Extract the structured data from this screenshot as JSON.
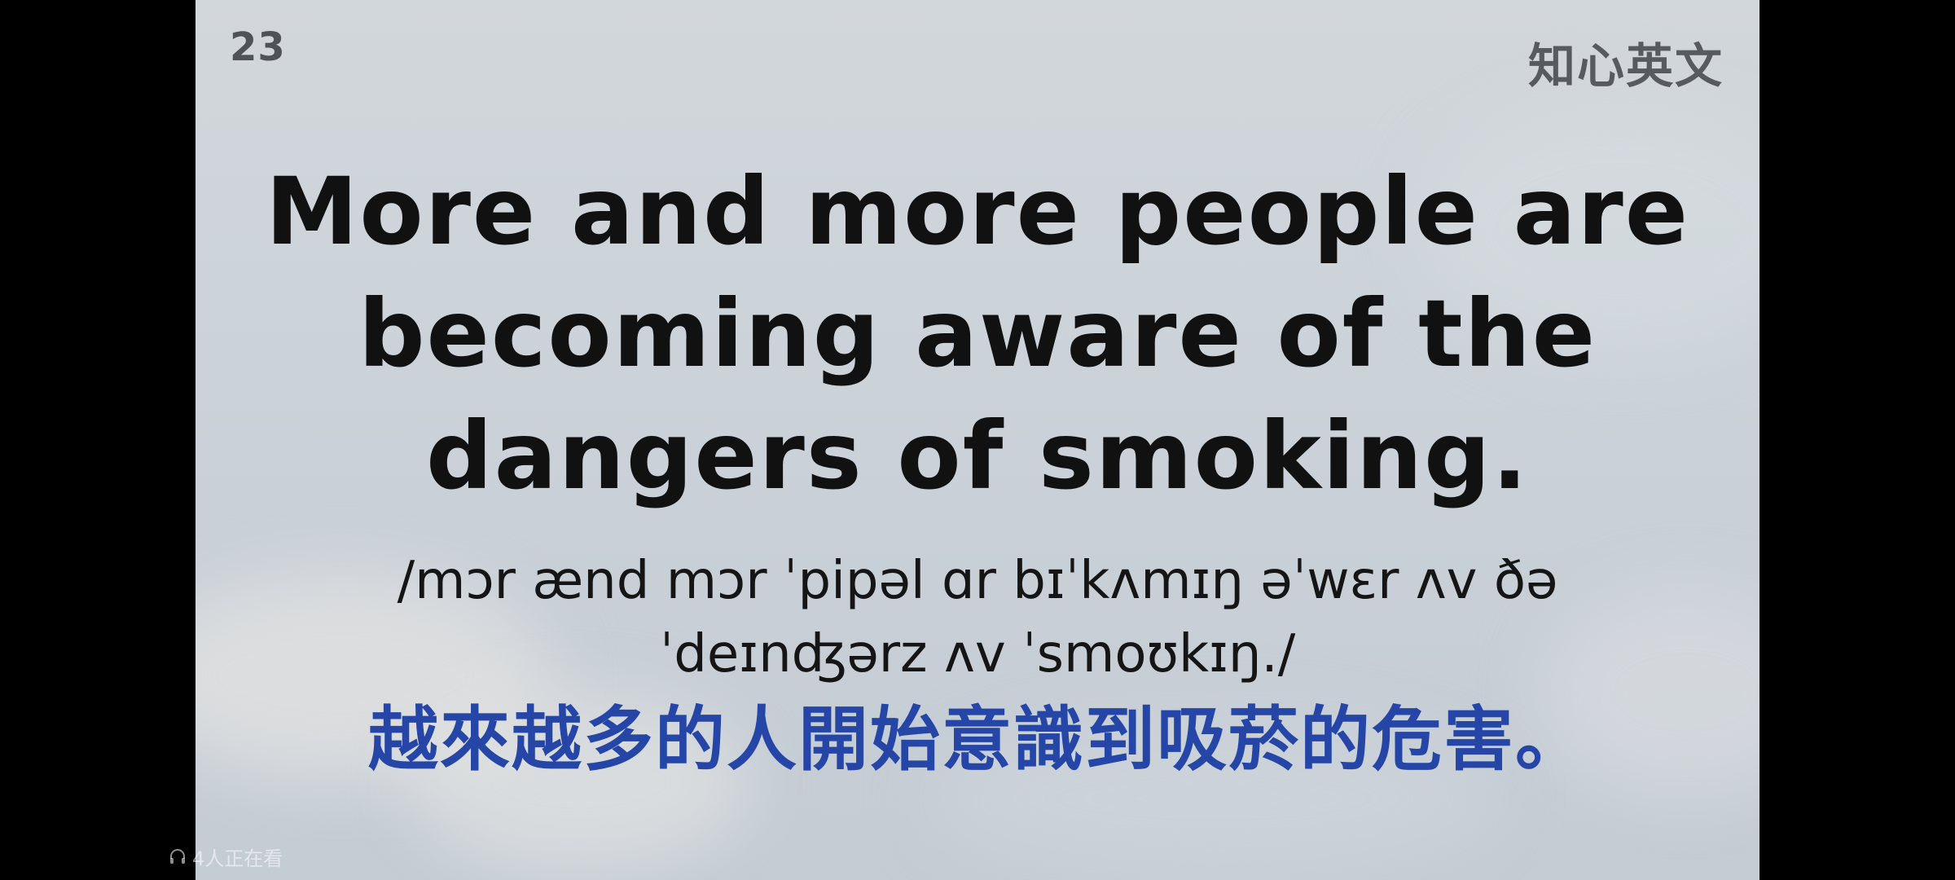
{
  "video": {
    "page_number": "23",
    "brand": "知心英文",
    "sentence_lines": [
      "More and more people are",
      "becoming aware of the",
      "dangers of smoking."
    ],
    "ipa_lines": [
      "/mɔr ænd mɔr ˈpipəl ɑr bɪˈkʌmɪŋ əˈwɛr ʌv ðə",
      "ˈdeɪnʤərz ʌv ˈsmoʊkɪŋ./"
    ],
    "translation": "越來越多的人開始意識到吸菸的危害。"
  },
  "overlay": {
    "viewers_text": "4人正在看",
    "viewers_icon": "headset-icon"
  },
  "colors": {
    "translation": "#2546a6",
    "sentence": "#111111",
    "background": "#ccd3d9",
    "side_bars": "#000000"
  }
}
